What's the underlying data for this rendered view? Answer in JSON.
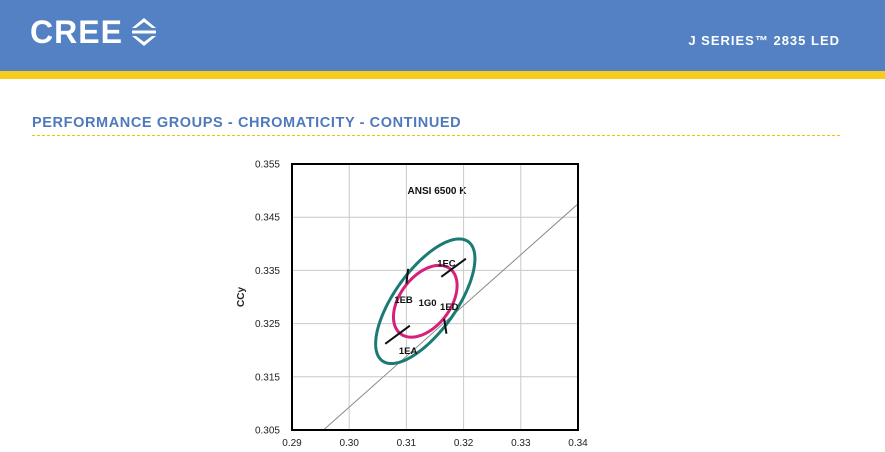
{
  "header": {
    "logo_text": "CREE",
    "logo_icon": "cree-chevrons-icon",
    "product_title": "J SERIES™ 2835 LED",
    "colors": {
      "band": "#5381c4",
      "stripe": "#f6cd1f"
    }
  },
  "section": {
    "title": "PERFORMANCE GROUPS - CHROMATICITY - CONTINUED"
  },
  "chart_data": {
    "type": "scatter",
    "title": "ANSI 6500 K",
    "xlabel": "",
    "ylabel": "CCy",
    "xlim": [
      0.29,
      0.34
    ],
    "ylim": [
      0.305,
      0.355
    ],
    "x_ticks": [
      0.29,
      0.3,
      0.31,
      0.32,
      0.33,
      0.34
    ],
    "x_tick_labels": [
      "0.29",
      "0.30",
      "0.31",
      "0.32",
      "0.33",
      "0.34"
    ],
    "y_ticks": [
      0.305,
      0.315,
      0.325,
      0.335,
      0.345,
      0.355
    ],
    "y_tick_labels": [
      "0.305",
      "0.315",
      "0.325",
      "0.335",
      "0.345",
      "0.355"
    ],
    "grid": true,
    "blackbody_line": {
      "x": [
        0.2955,
        0.34
      ],
      "y": [
        0.305,
        0.3475
      ]
    },
    "outer_ellipse": {
      "color": "#1a7a74",
      "center": [
        0.3133,
        0.3292
      ],
      "semi_major": 0.0135,
      "semi_minor": 0.0055,
      "angle_deg": 57
    },
    "inner_ellipse": {
      "color": "#d6207a",
      "center": [
        0.3133,
        0.3292
      ],
      "semi_major": 0.0075,
      "semi_minor": 0.0045,
      "angle_deg": 57
    },
    "dividers": [
      {
        "x": [
          0.3063,
          0.3106
        ],
        "y": [
          0.3212,
          0.3246
        ]
      },
      {
        "x": [
          0.3161,
          0.3204
        ],
        "y": [
          0.3338,
          0.3372
        ]
      },
      {
        "x": [
          0.3103,
          0.31
        ],
        "y": [
          0.3353,
          0.3325
        ]
      },
      {
        "x": [
          0.3166,
          0.317
        ],
        "y": [
          0.3259,
          0.3231
        ]
      }
    ],
    "bins": [
      {
        "label": "1EC",
        "x": 0.317,
        "y": 0.3362
      },
      {
        "label": "1EB",
        "x": 0.3095,
        "y": 0.3293
      },
      {
        "label": "1G0",
        "x": 0.3137,
        "y": 0.3288
      },
      {
        "label": "1ED",
        "x": 0.3175,
        "y": 0.328
      },
      {
        "label": "1EA",
        "x": 0.3103,
        "y": 0.3198
      }
    ]
  }
}
